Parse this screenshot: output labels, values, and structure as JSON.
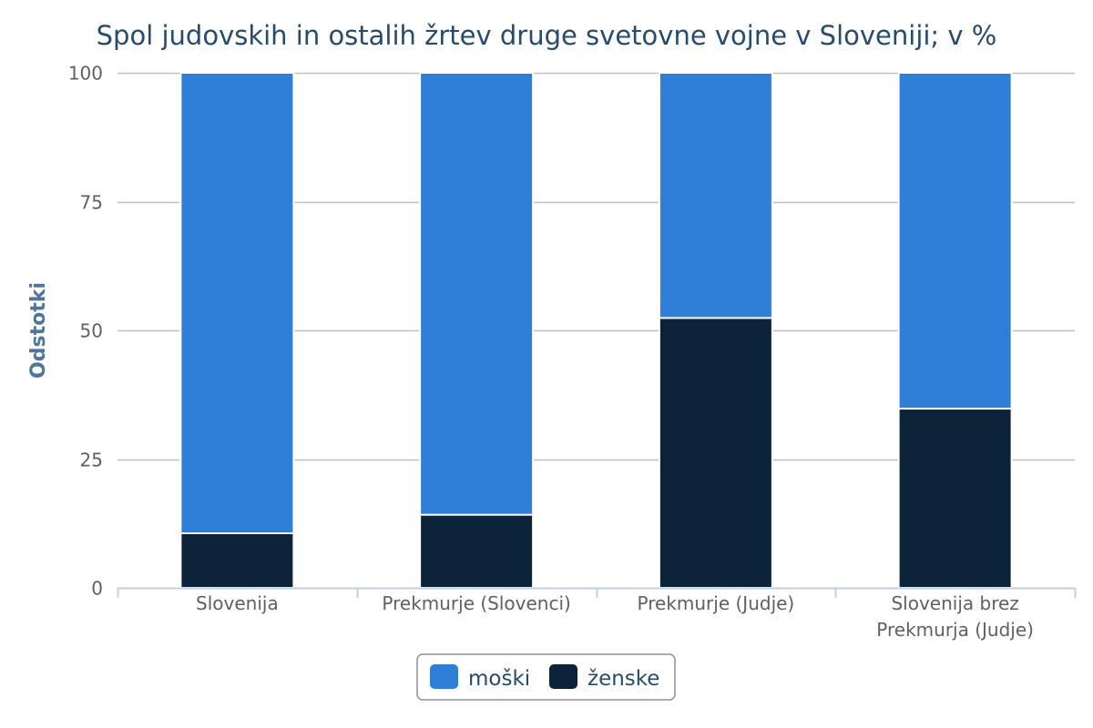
{
  "chart_data": {
    "type": "bar",
    "stacked": true,
    "title": "Spol judovskih in ostalih žrtev druge svetovne vojne v Sloveniji; v %",
    "ylabel": "Odstotki",
    "xlabel": "",
    "ylim": [
      0,
      100
    ],
    "yticks": [
      "0",
      "25",
      "50",
      "75",
      "100"
    ],
    "categories": [
      [
        "Slovenija"
      ],
      [
        "Prekmurje (Slovenci)"
      ],
      [
        "Prekmurje (Judje)"
      ],
      [
        "Slovenija brez",
        "Prekmurja (Judje)"
      ]
    ],
    "series": [
      {
        "name": "moški",
        "color": "#2f7ed8",
        "values": [
          89.4,
          85.8,
          47.6,
          65.2
        ]
      },
      {
        "name": "ženske",
        "color": "#0d233a",
        "values": [
          10.6,
          14.2,
          52.4,
          34.8
        ]
      }
    ],
    "grid": true,
    "legend": "bottom-center"
  }
}
